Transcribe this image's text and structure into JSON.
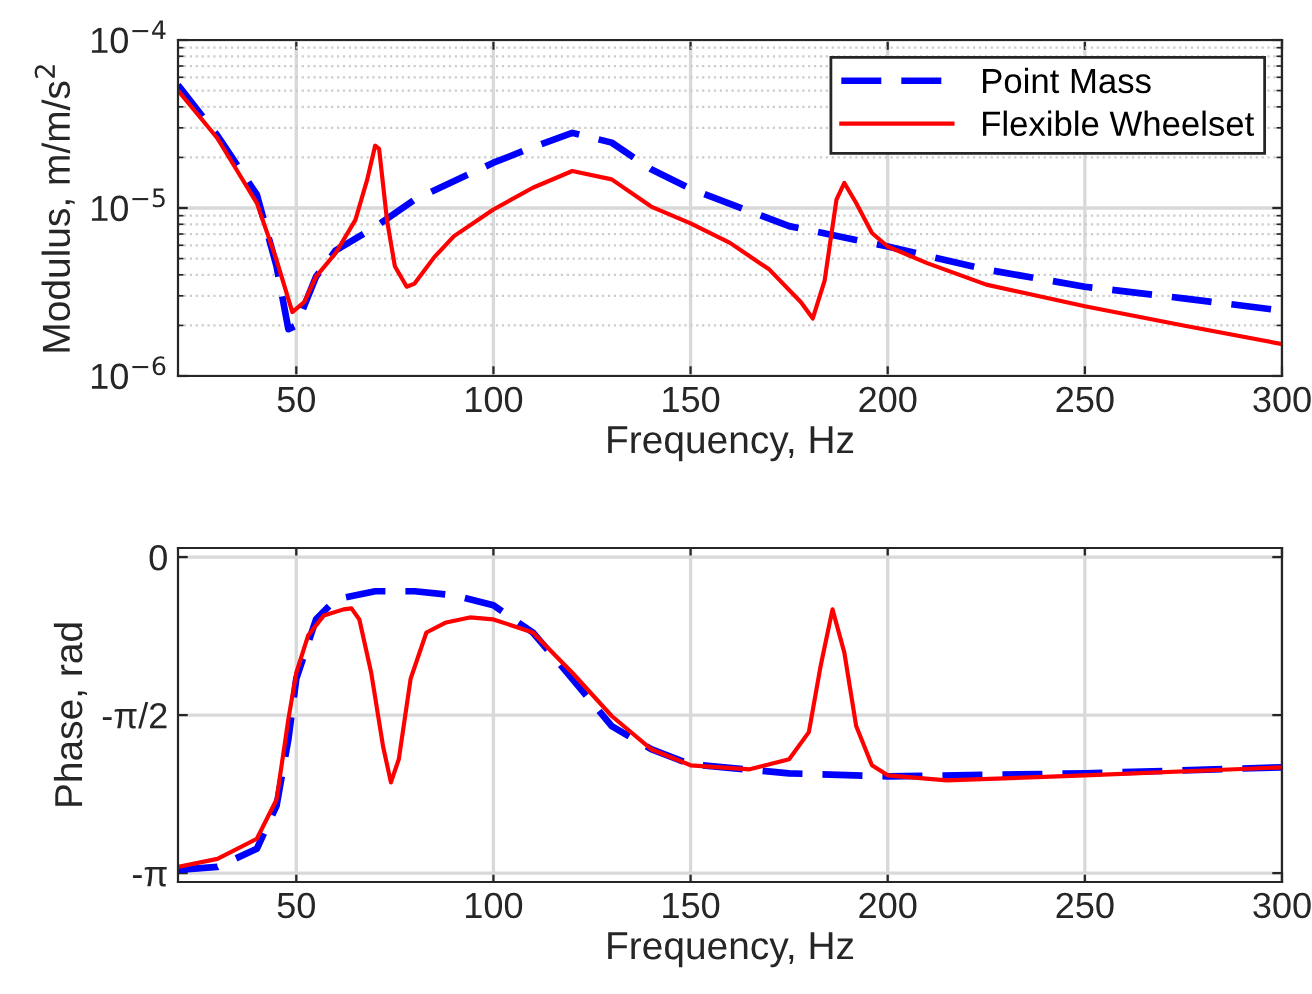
{
  "chart_data": [
    {
      "type": "line",
      "xlabel": "Frequency, Hz",
      "ylabel": "Modulus, m/m/s$^{2}$",
      "log": "y",
      "grid": true,
      "legend": "top right",
      "xlim": [
        20,
        300
      ],
      "xticks": [
        50,
        100,
        150,
        200,
        250,
        300
      ],
      "ylim": [
        1e-06,
        0.0001
      ],
      "yticks": [
        {
          "value": 1e-06,
          "label": "10$^{−6}$"
        },
        {
          "value": 1e-05,
          "label": "10$^{−5}$"
        },
        {
          "value": 0.0001,
          "label": "10$^{−4}$"
        }
      ],
      "series": [
        {
          "name": "Point Mass",
          "color": "#0000ff",
          "line_style": "dashed",
          "x": [
            20,
            30,
            40,
            45,
            48,
            50,
            55,
            60,
            70,
            80,
            100,
            110,
            120,
            130,
            140,
            150,
            175,
            200,
            225,
            250,
            275,
            300
          ],
          "values": [
            5.4e-05,
            2.7e-05,
            1.2e-05,
            4.5e-06,
            1.9e-06,
            2e-06,
            3.9e-06,
            5.6e-06,
            7.7e-06,
            1.12e-05,
            1.86e-05,
            2.3e-05,
            2.8e-05,
            2.45e-05,
            1.7e-05,
            1.3e-05,
            7.8e-06,
            5.9e-06,
            4.3e-06,
            3.4e-06,
            2.9e-06,
            2.45e-06
          ]
        },
        {
          "name": "Flexible Wheelset",
          "color": "#ff0000",
          "line_style": "solid",
          "x": [
            20,
            30,
            40,
            45,
            49,
            52,
            55,
            60,
            65,
            68,
            70,
            71,
            73,
            75,
            78,
            80,
            85,
            90,
            100,
            110,
            120,
            130,
            140,
            150,
            160,
            170,
            178,
            181,
            184,
            187,
            189,
            192,
            196,
            200,
            210,
            225,
            250,
            275,
            300
          ],
          "values": [
            5e-05,
            2.6e-05,
            1.07e-05,
            4.9e-06,
            2.4e-06,
            2.75e-06,
            3.9e-06,
            5.4e-06,
            8.5e-06,
            1.48e-05,
            2.35e-05,
            2.25e-05,
            8.5e-06,
            4.5e-06,
            3.4e-06,
            3.55e-06,
            5.1e-06,
            6.8e-06,
            9.8e-06,
            1.32e-05,
            1.66e-05,
            1.48e-05,
            1.02e-05,
            8.1e-06,
            6.2e-06,
            4.3e-06,
            2.75e-06,
            2.2e-06,
            3.7e-06,
            1.12e-05,
            1.41e-05,
            1.07e-05,
            7.1e-06,
            5.9e-06,
            4.7e-06,
            3.5e-06,
            2.6e-06,
            2e-06,
            1.55e-06
          ]
        }
      ]
    },
    {
      "type": "line",
      "xlabel": "Frequency, Hz",
      "ylabel": "Phase, rad",
      "grid": true,
      "xlim": [
        20,
        300
      ],
      "xticks": [
        50,
        100,
        150,
        200,
        250,
        300
      ],
      "ylim": [
        -3.23,
        0.09
      ],
      "yticks": [
        {
          "value": -3.1416,
          "label": "-π"
        },
        {
          "value": -1.5708,
          "label": "-π/2"
        },
        0
      ],
      "series": [
        {
          "color": "#0000ff",
          "line_style": "dashed",
          "x": [
            20,
            30,
            40,
            45,
            48,
            50,
            55,
            60,
            70,
            80,
            90,
            100,
            110,
            120,
            130,
            140,
            150,
            175,
            200,
            250,
            300
          ],
          "values": [
            -3.11,
            -3.08,
            -2.9,
            -2.47,
            -1.81,
            -1.21,
            -0.62,
            -0.42,
            -0.34,
            -0.34,
            -0.38,
            -0.48,
            -0.75,
            -1.21,
            -1.68,
            -1.91,
            -2.06,
            -2.15,
            -2.18,
            -2.15,
            -2.09
          ]
        },
        {
          "color": "#ff0000",
          "line_style": "solid",
          "x": [
            20,
            30,
            40,
            45,
            48,
            50,
            53,
            57,
            62,
            64,
            66,
            69,
            72,
            74,
            76,
            79,
            83,
            88,
            94,
            100,
            110,
            120,
            130,
            140,
            150,
            165,
            175,
            180,
            183,
            186,
            189,
            192,
            196,
            200,
            215,
            250,
            300
          ],
          "values": [
            -3.08,
            -3.0,
            -2.8,
            -2.41,
            -1.61,
            -1.15,
            -0.78,
            -0.58,
            -0.52,
            -0.51,
            -0.62,
            -1.15,
            -1.88,
            -2.24,
            -2.01,
            -1.21,
            -0.75,
            -0.65,
            -0.6,
            -0.62,
            -0.75,
            -1.15,
            -1.58,
            -1.91,
            -2.07,
            -2.11,
            -2.01,
            -1.74,
            -1.08,
            -0.52,
            -0.95,
            -1.68,
            -2.07,
            -2.17,
            -2.22,
            -2.17,
            -2.09
          ]
        }
      ]
    }
  ]
}
